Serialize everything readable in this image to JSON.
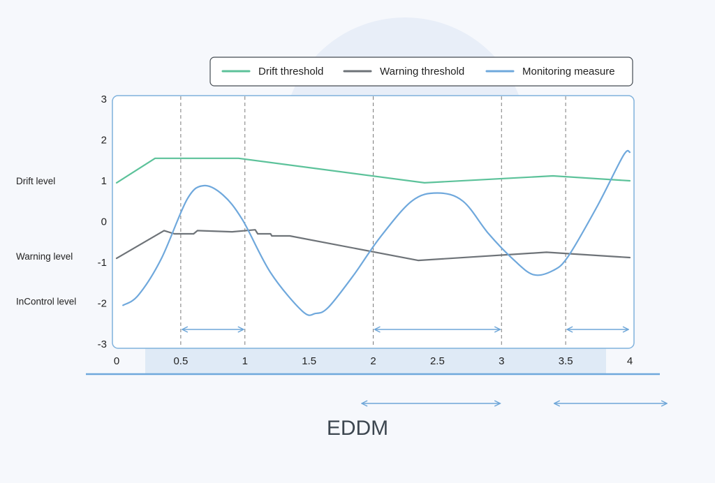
{
  "chart_data": {
    "type": "line",
    "title": "EDDM",
    "xlim": [
      0,
      4
    ],
    "ylim": [
      -3,
      3
    ],
    "x_ticks": [
      {
        "value": 0,
        "label": "0"
      },
      {
        "value": 0.5,
        "label": "0.5"
      },
      {
        "value": 1,
        "label": "1"
      },
      {
        "value": 1.5,
        "label": "1.5"
      },
      {
        "value": 2,
        "label": "2"
      },
      {
        "value": 2.5,
        "label": "2.5"
      },
      {
        "value": 3,
        "label": "3"
      },
      {
        "value": 3.5,
        "label": "3.5"
      },
      {
        "value": 4,
        "label": "4"
      }
    ],
    "y_ticks": [
      {
        "value": 3,
        "label": "3"
      },
      {
        "value": 2,
        "label": "2"
      },
      {
        "value": 1,
        "label": "1"
      },
      {
        "value": 0,
        "label": "0"
      },
      {
        "value": -1,
        "label": "-1"
      },
      {
        "value": -2,
        "label": "-2"
      },
      {
        "value": -3,
        "label": "-3"
      }
    ],
    "level_labels": [
      {
        "value": 1,
        "label": "Drift level"
      },
      {
        "value": -0.85,
        "label": "Warning level"
      },
      {
        "value": -1.95,
        "label": "InControl level"
      }
    ],
    "grid": false,
    "legend_position": "top",
    "series": [
      {
        "name": "Drift threshold",
        "color": "#5cc29a",
        "smooth": false,
        "x": [
          0,
          0.3,
          0.95,
          2.4,
          3.4,
          4
        ],
        "y": [
          0.95,
          1.55,
          1.55,
          0.95,
          1.12,
          1.0
        ]
      },
      {
        "name": "Warning threshold",
        "color": "#6e7378",
        "smooth": false,
        "x": [
          0,
          0.37,
          0.45,
          0.6,
          0.63,
          0.9,
          1.08,
          1.1,
          1.2,
          1.21,
          1.35,
          2.35,
          3.35,
          4
        ],
        "y": [
          -0.9,
          -0.22,
          -0.3,
          -0.3,
          -0.22,
          -0.25,
          -0.2,
          -0.3,
          -0.3,
          -0.35,
          -0.35,
          -0.95,
          -0.75,
          -0.88
        ]
      },
      {
        "name": "Monitoring measure",
        "color": "#6fa8dc",
        "smooth": true,
        "x": [
          0.05,
          0.17,
          0.35,
          0.55,
          0.68,
          0.83,
          0.98,
          1.2,
          1.45,
          1.55,
          1.65,
          1.85,
          2.05,
          2.3,
          2.5,
          2.7,
          2.9,
          3.1,
          3.25,
          3.4,
          3.52,
          3.75,
          3.95,
          4.0
        ],
        "y": [
          -2.05,
          -1.8,
          -0.9,
          0.55,
          0.88,
          0.65,
          0.05,
          -1.25,
          -2.2,
          -2.25,
          -2.1,
          -1.3,
          -0.4,
          0.5,
          0.7,
          0.5,
          -0.3,
          -0.95,
          -1.3,
          -1.2,
          -0.85,
          0.4,
          1.62,
          1.7
        ]
      }
    ],
    "dashed_markers": [
      0.5,
      1,
      2,
      3,
      3.5
    ],
    "interval_arrows": [
      {
        "from": 0.5,
        "to": 1
      },
      {
        "from": 2,
        "to": 3
      },
      {
        "from": 3.5,
        "to": 4
      }
    ],
    "bottom_arrows": [
      {
        "from": 1.9,
        "to": 3
      },
      {
        "from": 3.4,
        "to": 4.3
      }
    ]
  },
  "colors": {
    "axis_frame": "#7fb1dc",
    "arrow": "#6ea6d8",
    "dashed": "#7a7a7a",
    "text": "#222222",
    "title": "#3d4750",
    "background": "#f6f8fc",
    "decor_circle": "#e8eef8",
    "decor_band": "#dfeaf6"
  }
}
